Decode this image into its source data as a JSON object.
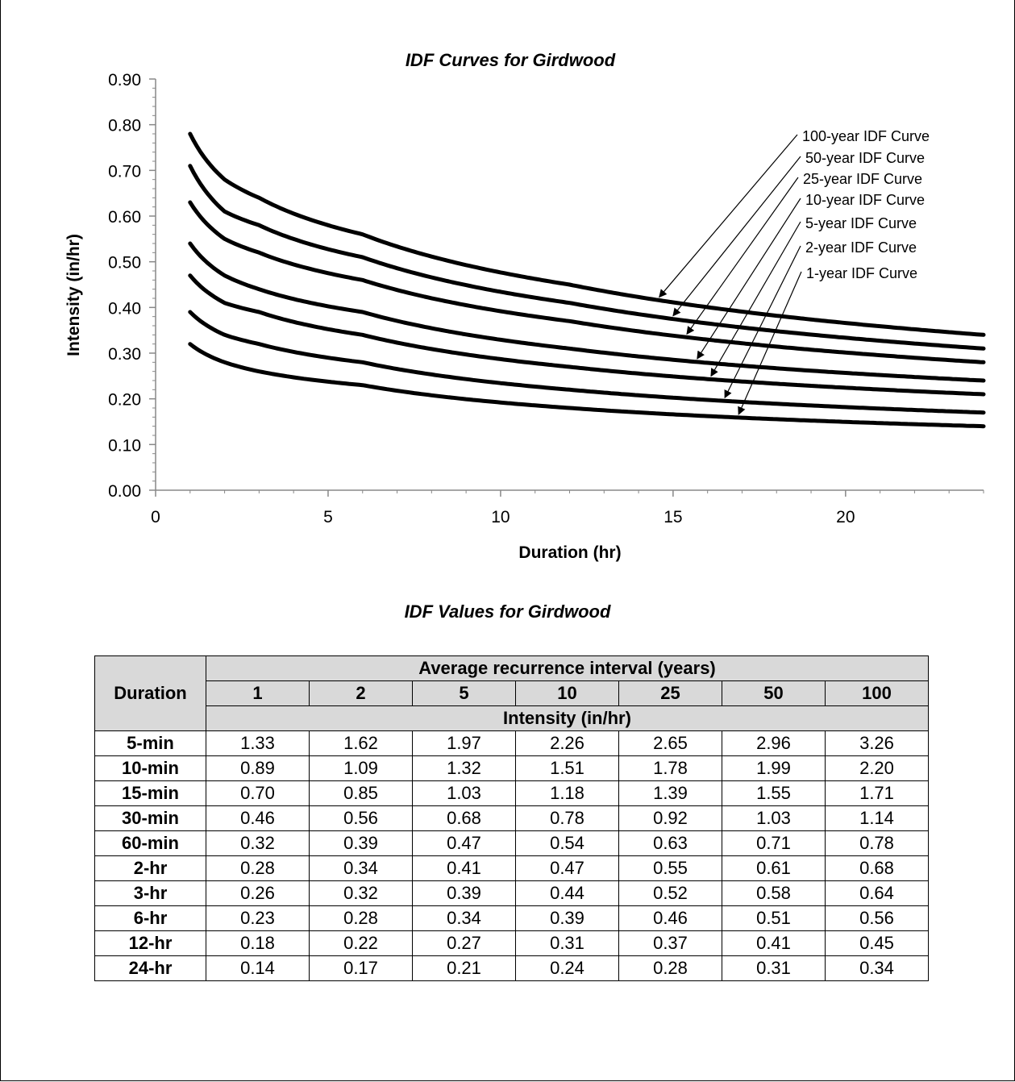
{
  "chart_data": {
    "type": "line",
    "title": "IDF Curves for Girdwood",
    "xlabel": "Duration (hr)",
    "ylabel": "Intensity (in/hr)",
    "xlim": [
      0,
      24
    ],
    "ylim": [
      0,
      0.9
    ],
    "x_ticks": [
      "0",
      "5",
      "10",
      "15",
      "20"
    ],
    "y_ticks": [
      "0.00",
      "0.10",
      "0.20",
      "0.30",
      "0.40",
      "0.50",
      "0.60",
      "0.70",
      "0.80",
      "0.90"
    ],
    "x": [
      1,
      2,
      3,
      6,
      12,
      24
    ],
    "series": [
      {
        "name": "100-year IDF Curve",
        "values": [
          0.78,
          0.68,
          0.64,
          0.56,
          0.45,
          0.34
        ]
      },
      {
        "name": "50-year IDF Curve",
        "values": [
          0.71,
          0.61,
          0.58,
          0.51,
          0.41,
          0.31
        ]
      },
      {
        "name": "25-year IDF Curve",
        "values": [
          0.63,
          0.55,
          0.52,
          0.46,
          0.37,
          0.28
        ]
      },
      {
        "name": "10-year IDF Curve",
        "values": [
          0.54,
          0.47,
          0.44,
          0.39,
          0.31,
          0.24
        ]
      },
      {
        "name": "5-year IDF Curve",
        "values": [
          0.47,
          0.41,
          0.39,
          0.34,
          0.27,
          0.21
        ]
      },
      {
        "name": "2-year IDF Curve",
        "values": [
          0.39,
          0.34,
          0.32,
          0.28,
          0.22,
          0.17
        ]
      },
      {
        "name": "1-year IDF Curve",
        "values": [
          0.32,
          0.28,
          0.26,
          0.23,
          0.18,
          0.14
        ]
      }
    ],
    "grid": false,
    "line_color": "#000000"
  },
  "table": {
    "title": "IDF Values for Girdwood",
    "duration_header": "Duration",
    "interval_header": "Average recurrence interval (years)",
    "intervals": [
      "1",
      "2",
      "5",
      "10",
      "25",
      "50",
      "100"
    ],
    "units_header": "Intensity (in/hr)",
    "rows": [
      {
        "duration": "5-min",
        "values": [
          "1.33",
          "1.62",
          "1.97",
          "2.26",
          "2.65",
          "2.96",
          "3.26"
        ]
      },
      {
        "duration": "10-min",
        "values": [
          "0.89",
          "1.09",
          "1.32",
          "1.51",
          "1.78",
          "1.99",
          "2.20"
        ]
      },
      {
        "duration": "15-min",
        "values": [
          "0.70",
          "0.85",
          "1.03",
          "1.18",
          "1.39",
          "1.55",
          "1.71"
        ]
      },
      {
        "duration": "30-min",
        "values": [
          "0.46",
          "0.56",
          "0.68",
          "0.78",
          "0.92",
          "1.03",
          "1.14"
        ]
      },
      {
        "duration": "60-min",
        "values": [
          "0.32",
          "0.39",
          "0.47",
          "0.54",
          "0.63",
          "0.71",
          "0.78"
        ]
      },
      {
        "duration": "2-hr",
        "values": [
          "0.28",
          "0.34",
          "0.41",
          "0.47",
          "0.55",
          "0.61",
          "0.68"
        ]
      },
      {
        "duration": "3-hr",
        "values": [
          "0.26",
          "0.32",
          "0.39",
          "0.44",
          "0.52",
          "0.58",
          "0.64"
        ]
      },
      {
        "duration": "6-hr",
        "values": [
          "0.23",
          "0.28",
          "0.34",
          "0.39",
          "0.46",
          "0.51",
          "0.56"
        ]
      },
      {
        "duration": "12-hr",
        "values": [
          "0.18",
          "0.22",
          "0.27",
          "0.31",
          "0.37",
          "0.41",
          "0.45"
        ]
      },
      {
        "duration": "24-hr",
        "values": [
          "0.14",
          "0.17",
          "0.21",
          "0.24",
          "0.28",
          "0.31",
          "0.34"
        ]
      }
    ]
  }
}
